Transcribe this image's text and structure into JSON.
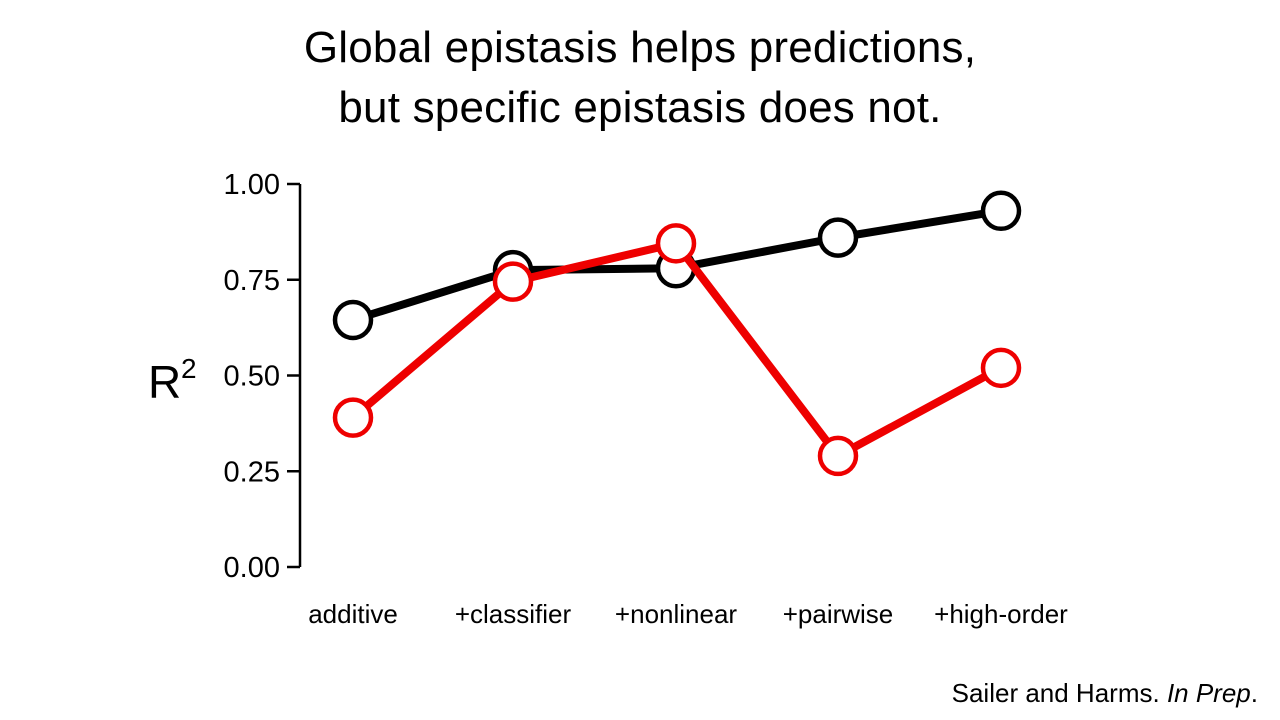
{
  "title": {
    "line1": {
      "bold": "Global epistasis",
      "rest": " helps predictions,"
    },
    "line2": {
      "pre": "but ",
      "bold": "specific epistasis",
      "rest": " does not."
    }
  },
  "citation": {
    "authors": "Sailer and Harms. ",
    "status": "In Prep",
    "end": "."
  },
  "chart_data": {
    "type": "line",
    "categories": [
      "additive",
      "+classifier",
      "+nonlinear",
      "+pairwise",
      "+high-order"
    ],
    "series": [
      {
        "color": "#000000",
        "values": [
          0.645,
          0.775,
          0.78,
          0.86,
          0.93
        ]
      },
      {
        "color": "#ee0000",
        "values": [
          0.39,
          0.745,
          0.845,
          0.29,
          0.52
        ]
      }
    ],
    "ylabel": "R",
    "ylabel_sup": "2",
    "ylim": [
      0,
      1
    ],
    "yticks": [
      "0.00",
      "0.25",
      "0.50",
      "0.75",
      "1.00"
    ],
    "ytick_values": [
      0,
      0.25,
      0.5,
      0.75,
      1.0
    ],
    "grid": false,
    "legend": "none"
  }
}
